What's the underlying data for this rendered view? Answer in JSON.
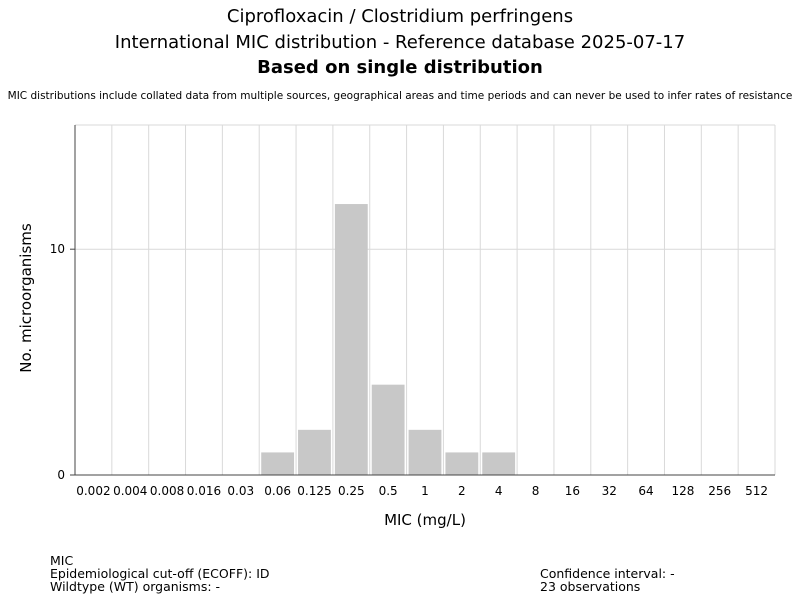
{
  "header": {
    "title_line1": "Ciprofloxacin / Clostridium perfringens",
    "title_line2": "International MIC distribution - Reference database 2025-07-17",
    "title_line3": "Based on single distribution",
    "disclaimer": "MIC distributions include collated data from multiple sources, geographical areas and time periods and can never be used to infer rates of resistance"
  },
  "footer": {
    "mic_label": "MIC",
    "ecoff": "Epidemiological cut-off (ECOFF): ID",
    "wt_organisms": "Wildtype (WT) organisms:  -",
    "confidence_interval": "Confidence interval: -",
    "observations": "23 observations"
  },
  "chart_data": {
    "type": "bar",
    "title": "Ciprofloxacin / Clostridium perfringens",
    "xlabel": "MIC (mg/L)",
    "ylabel": "No. microorganisms",
    "categories": [
      "0.002",
      "0.004",
      "0.008",
      "0.016",
      "0.03",
      "0.06",
      "0.125",
      "0.25",
      "0.5",
      "1",
      "2",
      "4",
      "8",
      "16",
      "32",
      "64",
      "128",
      "256",
      "512"
    ],
    "values": [
      0,
      0,
      0,
      0,
      0,
      1,
      2,
      12,
      4,
      2,
      1,
      1,
      0,
      0,
      0,
      0,
      0,
      0,
      0
    ],
    "ylim": [
      0,
      15.5
    ],
    "yticks": [
      0,
      10
    ],
    "grid": true,
    "bar_color": "#c8c8c8",
    "grid_color": "#d9d9d9"
  }
}
